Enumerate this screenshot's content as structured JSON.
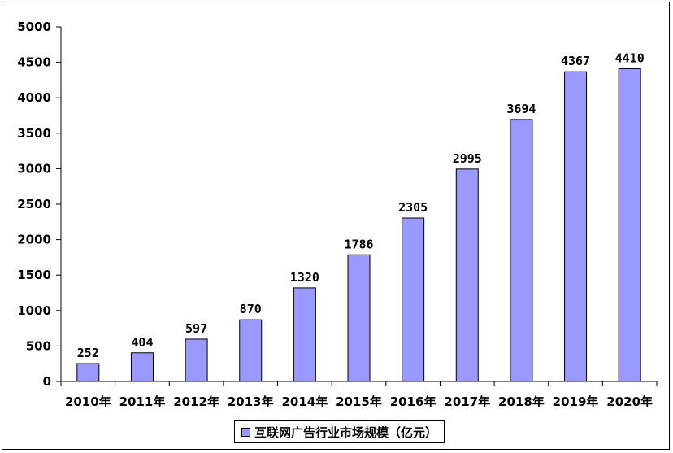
{
  "chart_data": {
    "type": "bar",
    "categories": [
      "2010年",
      "2011年",
      "2012年",
      "2013年",
      "2014年",
      "2015年",
      "2016年",
      "2017年",
      "2018年",
      "2019年",
      "2020年"
    ],
    "series": [
      {
        "name": "互联网广告行业市场规模（亿元）",
        "values": [
          252,
          404,
          597,
          870,
          1320,
          1786,
          2305,
          2995,
          3694,
          4367,
          4410
        ]
      }
    ],
    "data_labels": [
      "252",
      "404",
      "597",
      "870",
      "1320",
      "1786",
      "2305",
      "2995",
      "3694",
      "4367",
      "4410"
    ],
    "y_ticks": [
      "0",
      "500",
      "1000",
      "1500",
      "2000",
      "2500",
      "3000",
      "3500",
      "4000",
      "4500",
      "5000"
    ],
    "ylim": [
      0,
      5000
    ],
    "title": "",
    "xlabel": "",
    "ylabel": "",
    "grid": false,
    "legend_position": "bottom",
    "bar_color": "#9999FF",
    "bar_edge_color": "#000000"
  }
}
